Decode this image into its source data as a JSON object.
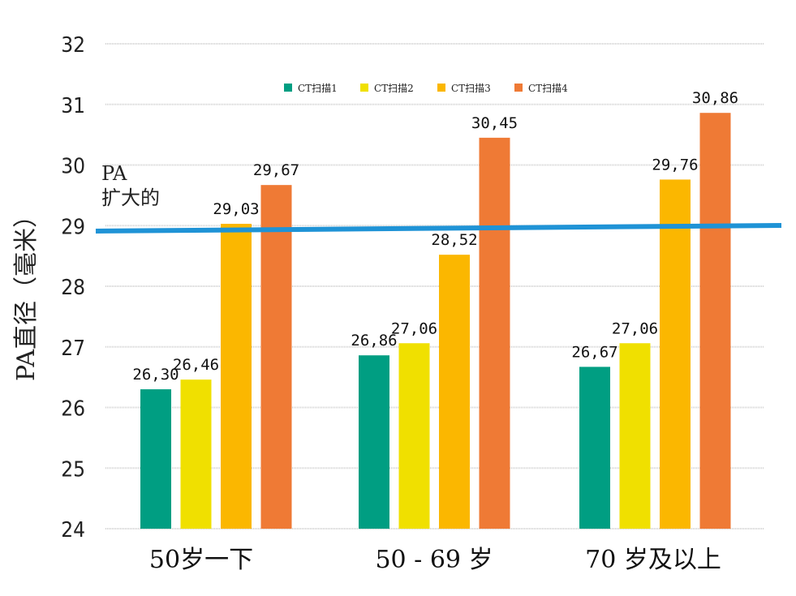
{
  "chart_data": {
    "type": "bar",
    "title": "",
    "xlabel": "",
    "ylabel": "PA直径（毫米）",
    "ylim": [
      24,
      32
    ],
    "yticks": [
      "24",
      "25",
      "26",
      "27",
      "28",
      "29",
      "30",
      "31",
      "32"
    ],
    "grid": true,
    "legend_position": "top-center",
    "categories": [
      "50岁一下",
      "50 - 69  岁",
      "70  岁及以上"
    ],
    "series": [
      {
        "name": "CT扫描1",
        "color": "#009e82",
        "values": [
          26.3,
          26.86,
          26.67
        ],
        "labels": [
          "26,30",
          "26,86",
          "26,67"
        ]
      },
      {
        "name": "CT扫描2",
        "color": "#f0e000",
        "values": [
          26.46,
          27.06,
          27.06
        ],
        "labels": [
          "26,46",
          "27,06",
          "27,06"
        ]
      },
      {
        "name": "CT扫描3",
        "color": "#fbb700",
        "values": [
          29.03,
          28.52,
          29.76
        ],
        "labels": [
          "29,03",
          "28,52",
          "29,76"
        ]
      },
      {
        "name": "CT扫描4",
        "color": "#ef7a35",
        "values": [
          29.67,
          30.45,
          30.86
        ],
        "labels": [
          "29,67",
          "30,45",
          "30,86"
        ]
      }
    ],
    "reference_line": {
      "value": 29,
      "color": "#1f93d6",
      "label_line1": "PA",
      "label_line2": "扩大的"
    }
  }
}
